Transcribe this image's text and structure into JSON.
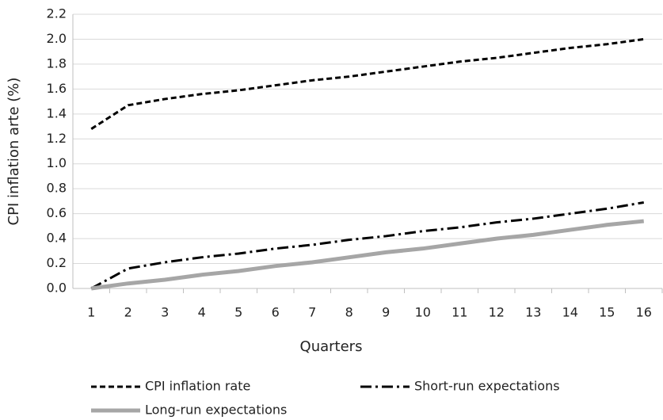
{
  "chart_data": {
    "type": "line",
    "x_label": "Quarters",
    "y_label": "CPI inflation arte (%)",
    "categories": [
      "1",
      "2",
      "3",
      "4",
      "5",
      "6",
      "7",
      "8",
      "9",
      "10",
      "11",
      "12",
      "13",
      "14",
      "15",
      "16"
    ],
    "series": [
      {
        "name": "CPI inflation rate",
        "color": "#000000",
        "dash": "dashed",
        "values": [
          1.28,
          1.47,
          1.52,
          1.56,
          1.59,
          1.63,
          1.67,
          1.7,
          1.74,
          1.78,
          1.82,
          1.85,
          1.89,
          1.93,
          1.96,
          2.0
        ]
      },
      {
        "name": "Short-run expectations",
        "color": "#000000",
        "dash": "dashdot",
        "values": [
          0,
          0.16,
          0.21,
          0.25,
          0.28,
          0.32,
          0.35,
          0.39,
          0.42,
          0.46,
          0.49,
          0.53,
          0.56,
          0.6,
          0.64,
          0.69
        ]
      },
      {
        "name": "Long-run expectations",
        "color": "#a6a6a6",
        "dash": "solid",
        "values": [
          0,
          0.04,
          0.07,
          0.11,
          0.14,
          0.18,
          0.21,
          0.25,
          0.29,
          0.32,
          0.36,
          0.4,
          0.43,
          0.47,
          0.51,
          0.54
        ]
      }
    ],
    "ylim": [
      0,
      2.2
    ],
    "yticks": [
      {
        "value": 0,
        "label": "0.0"
      },
      {
        "value": 0.2,
        "label": "0.2"
      },
      {
        "value": 0.4,
        "label": "0.4"
      },
      {
        "value": 0.6,
        "label": "0.6"
      },
      {
        "value": 0.8,
        "label": "0.8"
      },
      {
        "value": 1,
        "label": "1.0"
      },
      {
        "value": 1.2,
        "label": "1.2"
      },
      {
        "value": 1.4,
        "label": "1.4"
      },
      {
        "value": 1.6,
        "label": "1.6"
      },
      {
        "value": 1.8,
        "label": "1.8"
      },
      {
        "value": 2,
        "label": "2.0"
      },
      {
        "value": 2.2,
        "label": "2.2"
      }
    ],
    "grid": true,
    "legend": "bottom"
  }
}
